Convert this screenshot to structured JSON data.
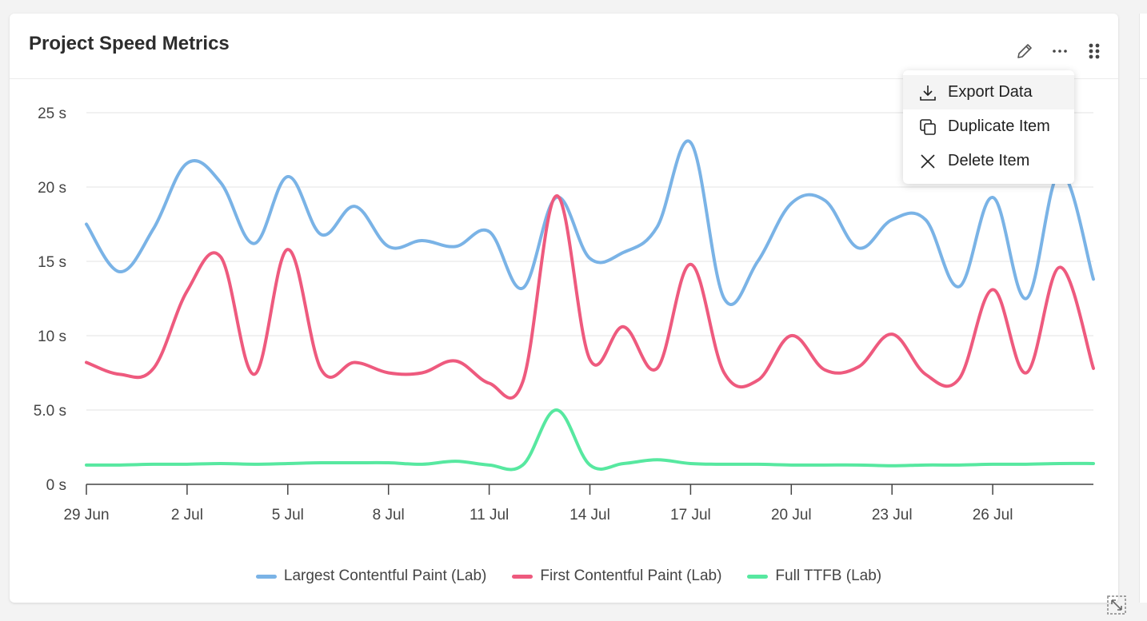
{
  "card": {
    "title": "Project Speed Metrics"
  },
  "header_icons": {
    "edit": "pencil-icon",
    "more": "more-horizontal-icon",
    "drag": "drag-handle-icon"
  },
  "menu": {
    "items": [
      {
        "label": "Export Data",
        "icon": "download-icon"
      },
      {
        "label": "Duplicate Item",
        "icon": "duplicate-icon"
      },
      {
        "label": "Delete Item",
        "icon": "close-icon"
      }
    ]
  },
  "chart_data": {
    "type": "line",
    "title": "Project Speed Metrics",
    "xlabel": "",
    "ylabel": "",
    "x": [
      "29 Jun",
      "30 Jun",
      "1 Jul",
      "2 Jul",
      "3 Jul",
      "4 Jul",
      "5 Jul",
      "6 Jul",
      "7 Jul",
      "8 Jul",
      "9 Jul",
      "10 Jul",
      "11 Jul",
      "12 Jul",
      "13 Jul",
      "14 Jul",
      "15 Jul",
      "16 Jul",
      "17 Jul",
      "18 Jul",
      "19 Jul",
      "20 Jul",
      "21 Jul",
      "22 Jul",
      "23 Jul",
      "24 Jul",
      "25 Jul",
      "26 Jul",
      "27 Jul",
      "28 Jul",
      "29 Jul"
    ],
    "x_tick_labels": [
      "29 Jun",
      "2 Jul",
      "5 Jul",
      "8 Jul",
      "11 Jul",
      "14 Jul",
      "17 Jul",
      "20 Jul",
      "23 Jul",
      "26 Jul"
    ],
    "y_tick_labels": [
      "0 s",
      "5.0 s",
      "10 s",
      "15 s",
      "20 s",
      "25 s"
    ],
    "ylim": [
      0,
      25
    ],
    "grid": true,
    "legend_position": "bottom",
    "series": [
      {
        "name": "Largest Contentful Paint (Lab)",
        "color": "#7ab3e6",
        "values": [
          17.5,
          14.3,
          17.2,
          21.6,
          20.3,
          16.2,
          20.7,
          16.8,
          18.7,
          16.0,
          16.4,
          16.0,
          17.0,
          13.2,
          19.3,
          15.2,
          15.6,
          17.3,
          23.0,
          12.5,
          15.0,
          18.9,
          19.1,
          15.9,
          17.8,
          17.8,
          13.3,
          19.3,
          12.5,
          21.0,
          13.8
        ]
      },
      {
        "name": "First Contentful Paint (Lab)",
        "color": "#ee5a7e",
        "values": [
          8.2,
          7.4,
          7.8,
          13.0,
          15.3,
          7.4,
          15.8,
          7.7,
          8.2,
          7.5,
          7.5,
          8.3,
          6.8,
          6.9,
          19.4,
          8.4,
          10.6,
          7.8,
          14.8,
          7.5,
          7.0,
          10.0,
          7.7,
          7.9,
          10.1,
          7.4,
          7.1,
          13.1,
          7.5,
          14.6,
          7.8
        ]
      },
      {
        "name": "Full TTFB (Lab)",
        "color": "#57e8a0",
        "values": [
          1.3,
          1.3,
          1.35,
          1.35,
          1.4,
          1.35,
          1.4,
          1.45,
          1.45,
          1.45,
          1.35,
          1.55,
          1.3,
          1.3,
          5.0,
          1.3,
          1.4,
          1.65,
          1.4,
          1.35,
          1.35,
          1.3,
          1.3,
          1.3,
          1.25,
          1.3,
          1.3,
          1.35,
          1.35,
          1.4,
          1.4
        ]
      }
    ]
  }
}
